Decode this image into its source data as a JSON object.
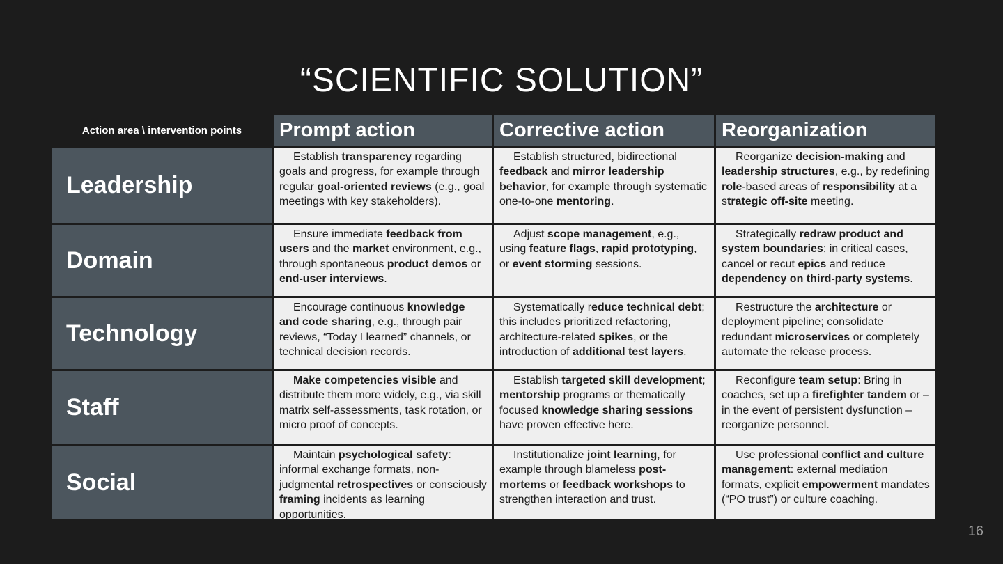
{
  "slide": {
    "title": "“SCIENTIFIC SOLUTION”",
    "page_number": "16"
  },
  "table": {
    "corner_label": "Action area \\ intervention points",
    "columns": [
      "Prompt action",
      "Corrective action",
      "Reorganization"
    ],
    "rows": [
      {
        "label": "Leadership",
        "cells": [
          "Establish **transparency** regarding goals and progress, for example through regular **goal-oriented reviews** (e.g., goal meetings with key stakeholders).",
          "Establish structured, bidirectional **feedback** and **mirror leadership behavior**, for example through systematic one-to-one **mentoring**.",
          "Reorganize **decision-making** and **leadership structures**, e.g., by redefining **role**-based areas of **responsibility** at a s**trategic off-site** meeting."
        ]
      },
      {
        "label": "Domain",
        "cells": [
          "Ensure immediate **feedback from users** and the **market** environment, e.g., through spontaneous **product demos** or **end-user interviews**.",
          "Adjust **scope management**, e.g., using **feature flags**, **rapid prototyping**, or **event storming** sessions.",
          "Strategically **redraw product and system boundaries**; in critical cases, cancel or recut **epics** and reduce **dependency on third-party systems**."
        ]
      },
      {
        "label": "Technology",
        "cells": [
          "Encourage continuous **knowledge and code sharing**, e.g., through pair reviews, “Today I learned” channels, or technical decision records.",
          "Systematically r**educe technical debt**; this includes prioritized refactoring, architecture-related **spikes**, or the introduction of **additional test layers**.",
          "Restructure the **architecture** or deployment pipeline; consolidate redundant **microservices** or completely automate the release process."
        ]
      },
      {
        "label": "Staff",
        "cells": [
          "**Make competencies visible** and distribute them more widely, e.g., via skill matrix self-assessments, task rotation, or micro proof of concepts.",
          "Establish **targeted skill development**; **mentorship** programs or thematically focused **knowledge sharing sessions** have proven effective here.",
          "Reconfigure **team setup**: Bring in coaches, set up a **firefighter tandem** or – in the event of persistent dysfunction – reorganize personnel."
        ]
      },
      {
        "label": "Social",
        "cells": [
          "Maintain **psychological safety**: informal exchange formats, non-judgmental **retrospectives** or consciously **framing** incidents as learning opportunities.",
          "Institutionalize **joint learning**, for example through blameless **post-mortems** or **feedback workshops** to strengthen interaction and trust.",
          "Use professional c**onflict and culture management**: external mediation formats, explicit **empowerment** mandates (“PO trust”) or culture coaching."
        ]
      }
    ]
  }
}
